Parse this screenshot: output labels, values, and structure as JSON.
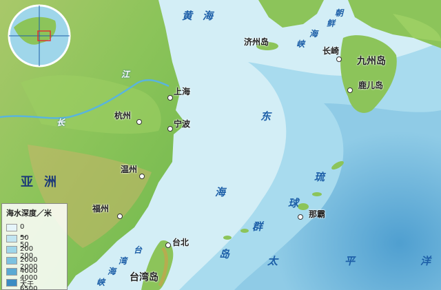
{
  "map": {
    "cities": [
      {
        "name": "上海"
      },
      {
        "name": "杭州"
      },
      {
        "name": "宁波"
      },
      {
        "name": "温州"
      },
      {
        "name": "福州"
      },
      {
        "name": "台北"
      },
      {
        "name": "长崎"
      },
      {
        "name": "鹿儿岛"
      },
      {
        "name": "那霸"
      }
    ],
    "seas": {
      "yellow_sea_1": "黄",
      "yellow_sea_2": "海",
      "east_china_sea_1": "东",
      "east_china_sea_2": "海",
      "korea_strait": [
        "朝",
        "鲜",
        "海",
        "峡"
      ],
      "taiwan_strait": [
        "台",
        "湾",
        "海",
        "峡"
      ],
      "pacific": [
        "太",
        "平",
        "洋"
      ]
    },
    "land": {
      "asia_1": "亚",
      "asia_2": "洲",
      "kyushu": "九州岛",
      "jeju": "济州岛",
      "taiwan": "台湾岛",
      "ryukyu": [
        "琉",
        "球",
        "群",
        "岛"
      ]
    },
    "river": [
      "长",
      "江"
    ]
  },
  "legend": {
    "title": "海水深度／米",
    "items": [
      {
        "label": "0～50",
        "color": "#e6f5fa"
      },
      {
        "label": "50～200",
        "color": "#c2e6f2"
      },
      {
        "label": "200～2000",
        "color": "#9fd6ea"
      },
      {
        "label": "2000～4000",
        "color": "#7cc2e0"
      },
      {
        "label": "4000～6500",
        "color": "#5aa9d3"
      },
      {
        "label": "大于6500",
        "color": "#3b8cc3"
      }
    ]
  }
}
